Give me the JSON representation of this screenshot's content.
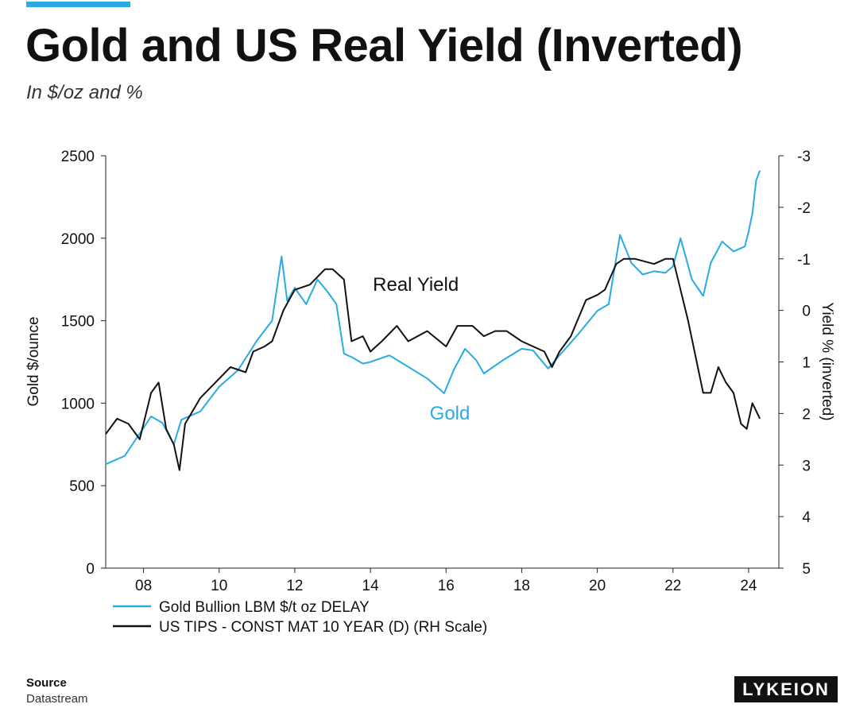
{
  "header": {
    "title": "Gold and US Real Yield (Inverted)",
    "subtitle": "In $/oz and %"
  },
  "footer": {
    "source_label": "Source",
    "source_value": "Datastream",
    "brand": "LYKEION"
  },
  "colors": {
    "gold": "#29abe2",
    "real_yield": "#111111",
    "accent": "#29abe2"
  },
  "chart_data": {
    "type": "line",
    "title": "Gold and US Real Yield (Inverted)",
    "x_range": [
      2007.0,
      2024.8
    ],
    "x_ticks": [
      2008,
      2010,
      2012,
      2014,
      2016,
      2018,
      2020,
      2022,
      2024
    ],
    "x_tick_labels": [
      "08",
      "10",
      "12",
      "14",
      "16",
      "18",
      "20",
      "22",
      "24"
    ],
    "y_left": {
      "label": "Gold $/ounce",
      "range": [
        0,
        2500
      ],
      "ticks": [
        0,
        500,
        1000,
        1500,
        2000,
        2500
      ]
    },
    "y_right": {
      "label": "Yield % (inverted)",
      "range": [
        5,
        -3
      ],
      "inverted": true,
      "ticks": [
        5,
        4,
        3,
        2,
        1,
        0,
        -1,
        -2,
        -3
      ]
    },
    "annotations": [
      {
        "text": "Real Yield",
        "series": "US TIPS - CONST MAT 10 YEAR (D) (RH Scale)",
        "x": 2015.2,
        "y": -0.5,
        "axis": "right"
      },
      {
        "text": "Gold",
        "series": "Gold Bullion LBM $/t oz DELAY",
        "x": 2016.1,
        "y": 940,
        "axis": "left"
      }
    ],
    "legend": [
      "Gold Bullion LBM $/t oz DELAY",
      "US TIPS - CONST MAT 10 YEAR (D) (RH Scale)"
    ],
    "series": [
      {
        "name": "Gold Bullion LBM $/t oz DELAY",
        "axis": "left",
        "x": [
          2007.0,
          2007.5,
          2008.0,
          2008.2,
          2008.5,
          2008.8,
          2009.0,
          2009.5,
          2010.0,
          2010.5,
          2011.0,
          2011.4,
          2011.65,
          2011.8,
          2012.0,
          2012.3,
          2012.6,
          2012.85,
          2013.1,
          2013.3,
          2013.5,
          2013.8,
          2014.0,
          2014.5,
          2015.0,
          2015.5,
          2015.95,
          2016.2,
          2016.5,
          2016.8,
          2017.0,
          2017.5,
          2018.0,
          2018.3,
          2018.7,
          2019.0,
          2019.5,
          2020.0,
          2020.3,
          2020.6,
          2020.9,
          2021.2,
          2021.5,
          2021.8,
          2022.0,
          2022.2,
          2022.5,
          2022.8,
          2023.0,
          2023.3,
          2023.6,
          2023.9,
          2024.0,
          2024.1,
          2024.2,
          2024.3
        ],
        "values": [
          630,
          680,
          850,
          920,
          880,
          750,
          900,
          950,
          1100,
          1200,
          1380,
          1500,
          1890,
          1620,
          1700,
          1600,
          1750,
          1680,
          1600,
          1300,
          1280,
          1240,
          1250,
          1290,
          1220,
          1150,
          1060,
          1200,
          1330,
          1260,
          1180,
          1260,
          1330,
          1320,
          1210,
          1290,
          1420,
          1560,
          1600,
          2020,
          1850,
          1780,
          1800,
          1790,
          1830,
          2000,
          1750,
          1650,
          1850,
          1980,
          1920,
          1950,
          2040,
          2150,
          2350,
          2410
        ]
      },
      {
        "name": "US TIPS - CONST MAT 10 YEAR (D) (RH Scale)",
        "axis": "right",
        "x": [
          2007.0,
          2007.3,
          2007.6,
          2007.9,
          2008.2,
          2008.4,
          2008.6,
          2008.8,
          2008.95,
          2009.1,
          2009.5,
          2009.9,
          2010.3,
          2010.7,
          2010.9,
          2011.2,
          2011.4,
          2011.7,
          2012.0,
          2012.4,
          2012.8,
          2013.0,
          2013.3,
          2013.5,
          2013.8,
          2014.0,
          2014.3,
          2014.7,
          2015.0,
          2015.5,
          2016.0,
          2016.3,
          2016.7,
          2017.0,
          2017.3,
          2017.6,
          2018.0,
          2018.3,
          2018.6,
          2018.8,
          2019.0,
          2019.3,
          2019.7,
          2020.0,
          2020.2,
          2020.5,
          2020.7,
          2021.0,
          2021.5,
          2021.8,
          2022.0,
          2022.2,
          2022.4,
          2022.6,
          2022.8,
          2023.0,
          2023.2,
          2023.4,
          2023.6,
          2023.8,
          2023.95,
          2024.1,
          2024.3
        ],
        "values": [
          2.4,
          2.1,
          2.2,
          2.5,
          1.6,
          1.4,
          2.3,
          2.6,
          3.1,
          2.2,
          1.7,
          1.4,
          1.1,
          1.2,
          0.8,
          0.7,
          0.6,
          0.0,
          -0.4,
          -0.5,
          -0.8,
          -0.8,
          -0.6,
          0.6,
          0.5,
          0.8,
          0.6,
          0.3,
          0.6,
          0.4,
          0.7,
          0.3,
          0.3,
          0.5,
          0.4,
          0.4,
          0.6,
          0.7,
          0.8,
          1.1,
          0.8,
          0.5,
          -0.2,
          -0.3,
          -0.4,
          -0.9,
          -1.0,
          -1.0,
          -0.9,
          -1.0,
          -1.0,
          -0.4,
          0.2,
          0.9,
          1.6,
          1.6,
          1.1,
          1.4,
          1.6,
          2.2,
          2.3,
          1.8,
          2.1
        ]
      }
    ]
  }
}
